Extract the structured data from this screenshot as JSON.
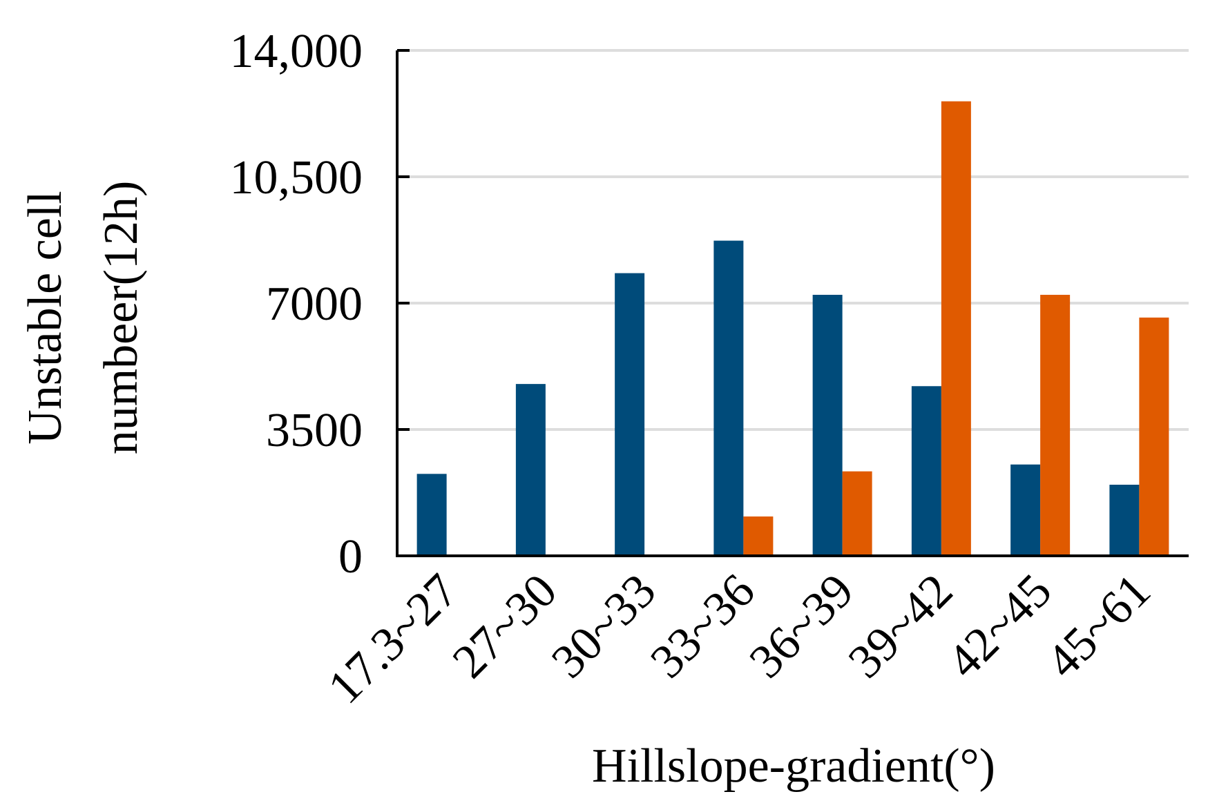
{
  "chart_data": {
    "type": "bar",
    "ylabel": [
      "Unstable cell",
      "numbeer(12h)"
    ],
    "xlabel": "Hillslope-gradient(°)",
    "categories": [
      "17.3~27",
      "27~30",
      "30~33",
      "33~36",
      "36~39",
      "39~42",
      "42~45",
      "45~61"
    ],
    "series": [
      {
        "color": "#004b7a",
        "values": [
          2270,
          4760,
          7830,
          8730,
          7230,
          4700,
          2530,
          1970
        ]
      },
      {
        "color": "#e05a00",
        "values": [
          0,
          0,
          0,
          1090,
          2340,
          12590,
          7230,
          6600
        ]
      }
    ],
    "ylim": [
      0,
      14000
    ],
    "yticks": [
      0,
      3500,
      7000,
      {
        "value": 10500,
        "label": "10,500"
      },
      {
        "value": 14000,
        "label": "14,000"
      }
    ],
    "grid": true
  }
}
